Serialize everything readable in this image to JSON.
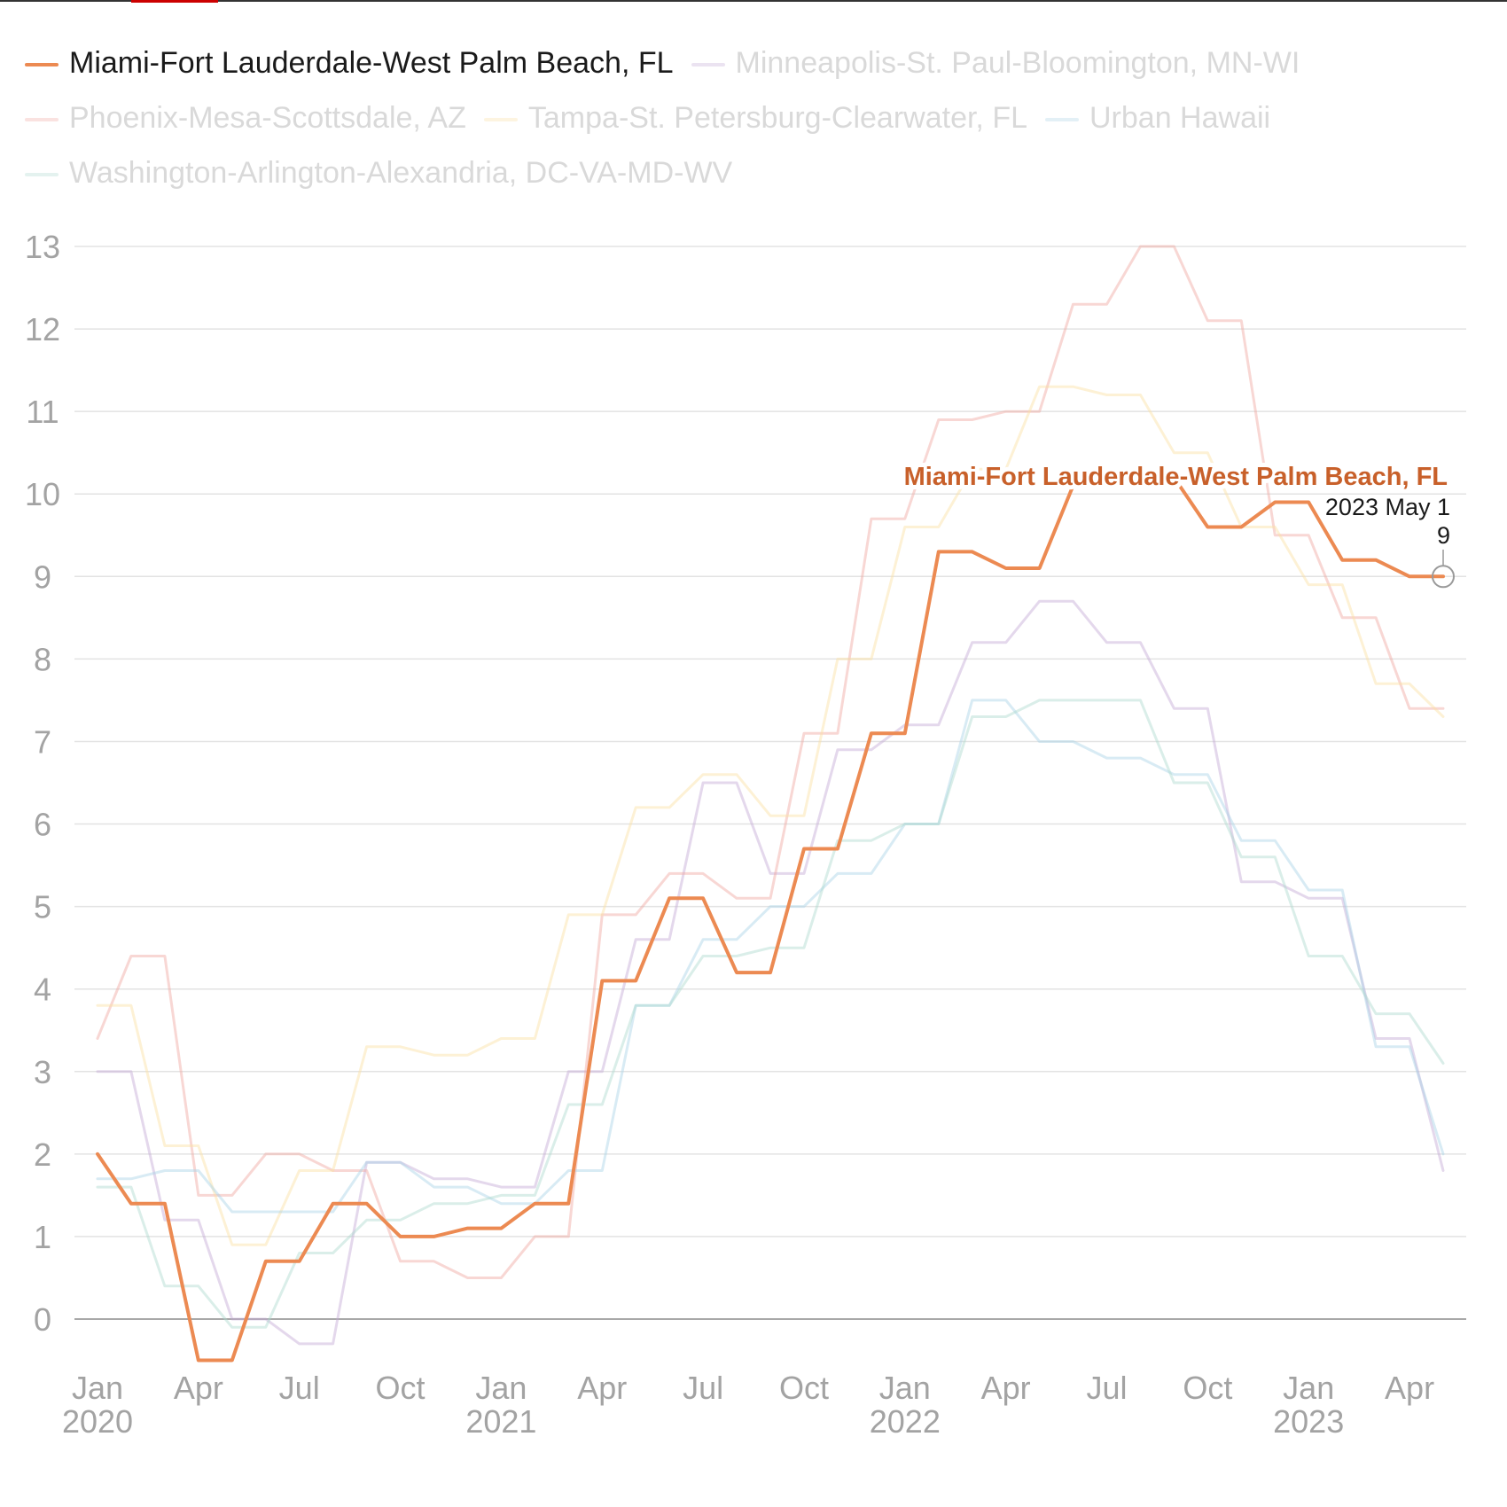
{
  "colors": {
    "Miami-Fort Lauderdale-West Palm Beach, FL": "#ec8a52",
    "Minneapolis-St. Paul-Bloomington, MN-WI": "#c4a9d4",
    "Phoenix-Mesa-Scottsdale, AZ": "#f0a7a0",
    "Tampa-St. Petersburg-Clearwater, FL": "#fbe0a2",
    "Urban Hawaii": "#a9d3e6",
    "Washington-Arlington-Alexandria, DC-VA-MD-WV": "#aed9cf",
    "highlight_label": "#c8602a",
    "grid": "#e3e3e3",
    "tick": "#a3a3a3"
  },
  "chart_data": {
    "type": "line",
    "title": "",
    "xlabel": "",
    "ylabel": "",
    "ylim": [
      -0.6,
      13
    ],
    "y_ticks": [
      0,
      1,
      2,
      3,
      4,
      5,
      6,
      7,
      8,
      9,
      10,
      11,
      12,
      13
    ],
    "x_start": "2020-01",
    "x_ticks": [
      {
        "month": "Jan",
        "year": "2020"
      },
      {
        "month": "Apr",
        "year": ""
      },
      {
        "month": "Jul",
        "year": ""
      },
      {
        "month": "Oct",
        "year": ""
      },
      {
        "month": "Jan",
        "year": "2021"
      },
      {
        "month": "Apr",
        "year": ""
      },
      {
        "month": "Jul",
        "year": ""
      },
      {
        "month": "Oct",
        "year": ""
      },
      {
        "month": "Jan",
        "year": "2022"
      },
      {
        "month": "Apr",
        "year": ""
      },
      {
        "month": "Jul",
        "year": ""
      },
      {
        "month": "Oct",
        "year": ""
      },
      {
        "month": "Jan",
        "year": "2023"
      },
      {
        "month": "Apr",
        "year": ""
      }
    ],
    "grid": true,
    "legend_position": "top",
    "highlighted_series": "Miami-Fort Lauderdale-West Palm Beach, FL",
    "annotation": {
      "label": "Miami-Fort Lauderdale-West Palm Beach, FL",
      "date": "2023 May 1",
      "value": "9"
    },
    "series": [
      {
        "name": "Miami-Fort Lauderdale-West Palm Beach, FL",
        "values": [
          2,
          1.4,
          1.4,
          -0.5,
          -0.5,
          0.7,
          0.7,
          1.4,
          1.4,
          1.0,
          1.0,
          1.1,
          1.1,
          1.4,
          1.4,
          4.1,
          4.1,
          5.1,
          5.1,
          4.2,
          4.2,
          5.7,
          5.7,
          7.1,
          7.1,
          9.3,
          9.3,
          9.1,
          9.1,
          10.1,
          10.1,
          10.2,
          10.2,
          9.6,
          9.6,
          9.9,
          9.9,
          9.2,
          9.2,
          9.0,
          9.0
        ]
      },
      {
        "name": "Minneapolis-St. Paul-Bloomington, MN-WI",
        "values": [
          3.0,
          3.0,
          1.2,
          1.2,
          0.0,
          0.0,
          -0.3,
          -0.3,
          1.9,
          1.9,
          1.7,
          1.7,
          1.6,
          1.6,
          3.0,
          3.0,
          4.6,
          4.6,
          6.5,
          6.5,
          5.4,
          5.4,
          6.9,
          6.9,
          7.2,
          7.2,
          8.2,
          8.2,
          8.7,
          8.7,
          8.2,
          8.2,
          7.4,
          7.4,
          5.3,
          5.3,
          5.1,
          5.1,
          3.4,
          3.4,
          1.8
        ]
      },
      {
        "name": "Phoenix-Mesa-Scottsdale, AZ",
        "values": [
          3.4,
          4.4,
          4.4,
          1.5,
          1.5,
          2.0,
          2.0,
          1.8,
          1.8,
          0.7,
          0.7,
          0.5,
          0.5,
          1.0,
          1.0,
          4.9,
          4.9,
          5.4,
          5.4,
          5.1,
          5.1,
          7.1,
          7.1,
          9.7,
          9.7,
          10.9,
          10.9,
          11.0,
          11.0,
          12.3,
          12.3,
          13.0,
          13.0,
          12.1,
          12.1,
          9.5,
          9.5,
          8.5,
          8.5,
          7.4,
          7.4
        ]
      },
      {
        "name": "Tampa-St. Petersburg-Clearwater, FL",
        "values": [
          3.8,
          3.8,
          2.1,
          2.1,
          0.9,
          0.9,
          1.8,
          1.8,
          3.3,
          3.3,
          3.2,
          3.2,
          3.4,
          3.4,
          4.9,
          4.9,
          6.2,
          6.2,
          6.6,
          6.6,
          6.1,
          6.1,
          8.0,
          8.0,
          9.6,
          9.6,
          10.3,
          10.3,
          11.3,
          11.3,
          11.2,
          11.2,
          10.5,
          10.5,
          9.6,
          9.6,
          8.9,
          8.9,
          7.7,
          7.7,
          7.3
        ]
      },
      {
        "name": "Urban Hawaii",
        "values": [
          1.7,
          1.7,
          1.8,
          1.8,
          1.3,
          1.3,
          1.3,
          1.3,
          1.9,
          1.9,
          1.6,
          1.6,
          1.4,
          1.4,
          1.8,
          1.8,
          3.8,
          3.8,
          4.6,
          4.6,
          5.0,
          5.0,
          5.4,
          5.4,
          6.0,
          6.0,
          7.5,
          7.5,
          7.0,
          7.0,
          6.8,
          6.8,
          6.6,
          6.6,
          5.8,
          5.8,
          5.2,
          5.2,
          3.3,
          3.3,
          2.0
        ]
      },
      {
        "name": "Washington-Arlington-Alexandria, DC-VA-MD-WV",
        "values": [
          1.6,
          1.6,
          0.4,
          0.4,
          -0.1,
          -0.1,
          0.8,
          0.8,
          1.2,
          1.2,
          1.4,
          1.4,
          1.5,
          1.5,
          2.6,
          2.6,
          3.8,
          3.8,
          4.4,
          4.4,
          4.5,
          4.5,
          5.8,
          5.8,
          6.0,
          6.0,
          7.3,
          7.3,
          7.5,
          7.5,
          7.5,
          7.5,
          6.5,
          6.5,
          5.6,
          5.6,
          4.4,
          4.4,
          3.7,
          3.7,
          3.1
        ]
      }
    ]
  }
}
